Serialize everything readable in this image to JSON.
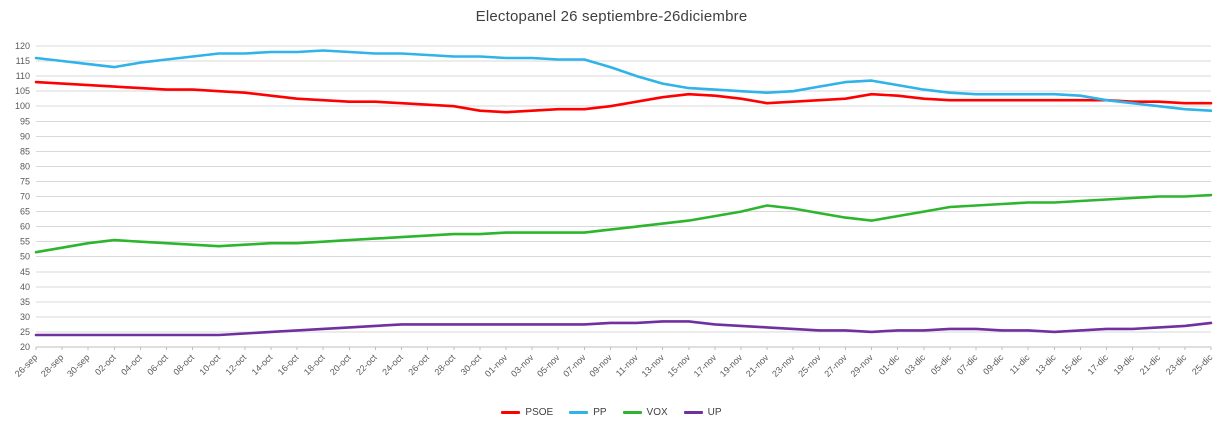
{
  "chart_data": {
    "type": "line",
    "title": "Electopanel 26 septiembre-26diciembre",
    "xlabel": "",
    "ylabel": "",
    "ylim": [
      20,
      120
    ],
    "ytick_step": 5,
    "grid": "horizontal",
    "legend_position": "bottom",
    "axis_text_color": "#595959",
    "grid_color": "#d9d9d9",
    "axis_line_color": "#bfbfbf",
    "categories": [
      "26-sep",
      "28-sep",
      "30-sep",
      "02-oct",
      "04-oct",
      "06-oct",
      "08-oct",
      "10-oct",
      "12-oct",
      "14-oct",
      "16-oct",
      "18-oct",
      "20-oct",
      "22-oct",
      "24-oct",
      "26-oct",
      "28-oct",
      "30-oct",
      "01-nov",
      "03-nov",
      "05-nov",
      "07-nov",
      "09-nov",
      "11-nov",
      "13-nov",
      "15-nov",
      "17-nov",
      "19-nov",
      "21-nov",
      "23-nov",
      "25-nov",
      "27-nov",
      "29-nov",
      "01-dic",
      "03-dic",
      "05-dic",
      "07-dic",
      "09-dic",
      "11-dic",
      "13-dic",
      "15-dic",
      "17-dic",
      "19-dic",
      "21-dic",
      "23-dic",
      "25-dic"
    ],
    "series": [
      {
        "name": "PSOE",
        "color": "#ff0000",
        "values": [
          108,
          107.5,
          107,
          106.5,
          106,
          105.5,
          105.5,
          105,
          104.5,
          103.5,
          102.5,
          102,
          101.5,
          101.5,
          101,
          100.5,
          100,
          98.5,
          98,
          98.5,
          99,
          99,
          100,
          101.5,
          103,
          104,
          103.5,
          102.5,
          101,
          101.5,
          102,
          102.5,
          104,
          103.5,
          102.5,
          102,
          102,
          102,
          102,
          102,
          102,
          102,
          101.5,
          101.5,
          101,
          101
        ]
      },
      {
        "name": "PP",
        "color": "#2fb3e8",
        "values": [
          116,
          115,
          114,
          113,
          114.5,
          115.5,
          116.5,
          117.5,
          117.5,
          118,
          118,
          118.5,
          118,
          117.5,
          117.5,
          117,
          116.5,
          116.5,
          116,
          116,
          115.5,
          115.5,
          113,
          110,
          107.5,
          106,
          105.5,
          105,
          104.5,
          105,
          106.5,
          108,
          108.5,
          107,
          105.5,
          104.5,
          104,
          104,
          104,
          104,
          103.5,
          102,
          101,
          100,
          99,
          98.5
        ]
      },
      {
        "name": "VOX",
        "color": "#2db52d",
        "values": [
          51.5,
          53,
          54.5,
          55.5,
          55,
          54.5,
          54,
          53.5,
          54,
          54.5,
          54.5,
          55,
          55.5,
          56,
          56.5,
          57,
          57.5,
          57.5,
          58,
          58,
          58,
          58,
          59,
          60,
          61,
          62,
          63.5,
          65,
          67,
          66,
          64.5,
          63,
          62,
          63.5,
          65,
          66.5,
          67,
          67.5,
          68,
          68,
          68.5,
          69,
          69.5,
          70,
          70,
          70.5
        ]
      },
      {
        "name": "UP",
        "color": "#7030a0",
        "values": [
          24,
          24,
          24,
          24,
          24,
          24,
          24,
          24,
          24.5,
          25,
          25.5,
          26,
          26.5,
          27,
          27.5,
          27.5,
          27.5,
          27.5,
          27.5,
          27.5,
          27.5,
          27.5,
          28,
          28,
          28.5,
          28.5,
          27.5,
          27,
          26.5,
          26,
          25.5,
          25.5,
          25,
          25.5,
          25.5,
          26,
          26,
          25.5,
          25.5,
          25,
          25.5,
          26,
          26,
          26.5,
          27,
          28
        ]
      }
    ]
  }
}
